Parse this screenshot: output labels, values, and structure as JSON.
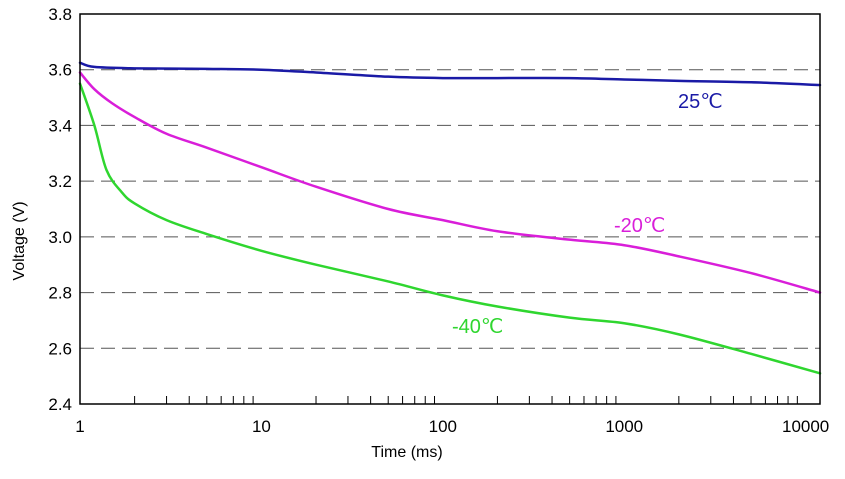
{
  "chart_data": {
    "type": "line",
    "title": "",
    "xlabel": "Time (ms)",
    "ylabel": "Voltage (V)",
    "x_scale": "log",
    "xlim": [
      1,
      12000
    ],
    "ylim": [
      2.4,
      3.8
    ],
    "x_tick_labels": [
      "1",
      "10",
      "100",
      "1000",
      "10000"
    ],
    "x_ticks": [
      1,
      10,
      100,
      1000,
      10000
    ],
    "y_tick_labels": [
      "2.4",
      "2.6",
      "2.8",
      "3.0",
      "3.2",
      "3.4",
      "3.6",
      "3.8"
    ],
    "y_ticks": [
      2.4,
      2.6,
      2.8,
      3.0,
      3.2,
      3.4,
      3.6,
      3.8
    ],
    "grid": "horizontal-dashed",
    "series": [
      {
        "name": "25℃",
        "color": "#1a1aa6",
        "x": [
          1,
          1.2,
          2,
          5,
          10,
          20,
          50,
          100,
          200,
          500,
          1000,
          2000,
          5000,
          12000
        ],
        "y": [
          3.625,
          3.61,
          3.605,
          3.603,
          3.6,
          3.59,
          3.575,
          3.57,
          3.57,
          3.57,
          3.565,
          3.56,
          3.555,
          3.545
        ]
      },
      {
        "name": "-20℃",
        "color": "#d91ed9",
        "x": [
          1,
          1.2,
          1.5,
          2,
          3,
          5,
          10,
          20,
          50,
          100,
          200,
          500,
          1000,
          2000,
          5000,
          12000
        ],
        "y": [
          3.59,
          3.53,
          3.48,
          3.43,
          3.37,
          3.32,
          3.25,
          3.18,
          3.1,
          3.06,
          3.02,
          2.99,
          2.97,
          2.93,
          2.87,
          2.8
        ]
      },
      {
        "name": "-40℃",
        "color": "#2fd62f",
        "x": [
          1,
          1.2,
          1.4,
          1.7,
          2,
          3,
          5,
          10,
          20,
          50,
          100,
          200,
          500,
          1000,
          2000,
          5000,
          12000
        ],
        "y": [
          3.55,
          3.4,
          3.24,
          3.16,
          3.12,
          3.06,
          3.01,
          2.95,
          2.9,
          2.84,
          2.79,
          2.75,
          2.71,
          2.69,
          2.65,
          2.58,
          2.51
        ]
      }
    ]
  }
}
